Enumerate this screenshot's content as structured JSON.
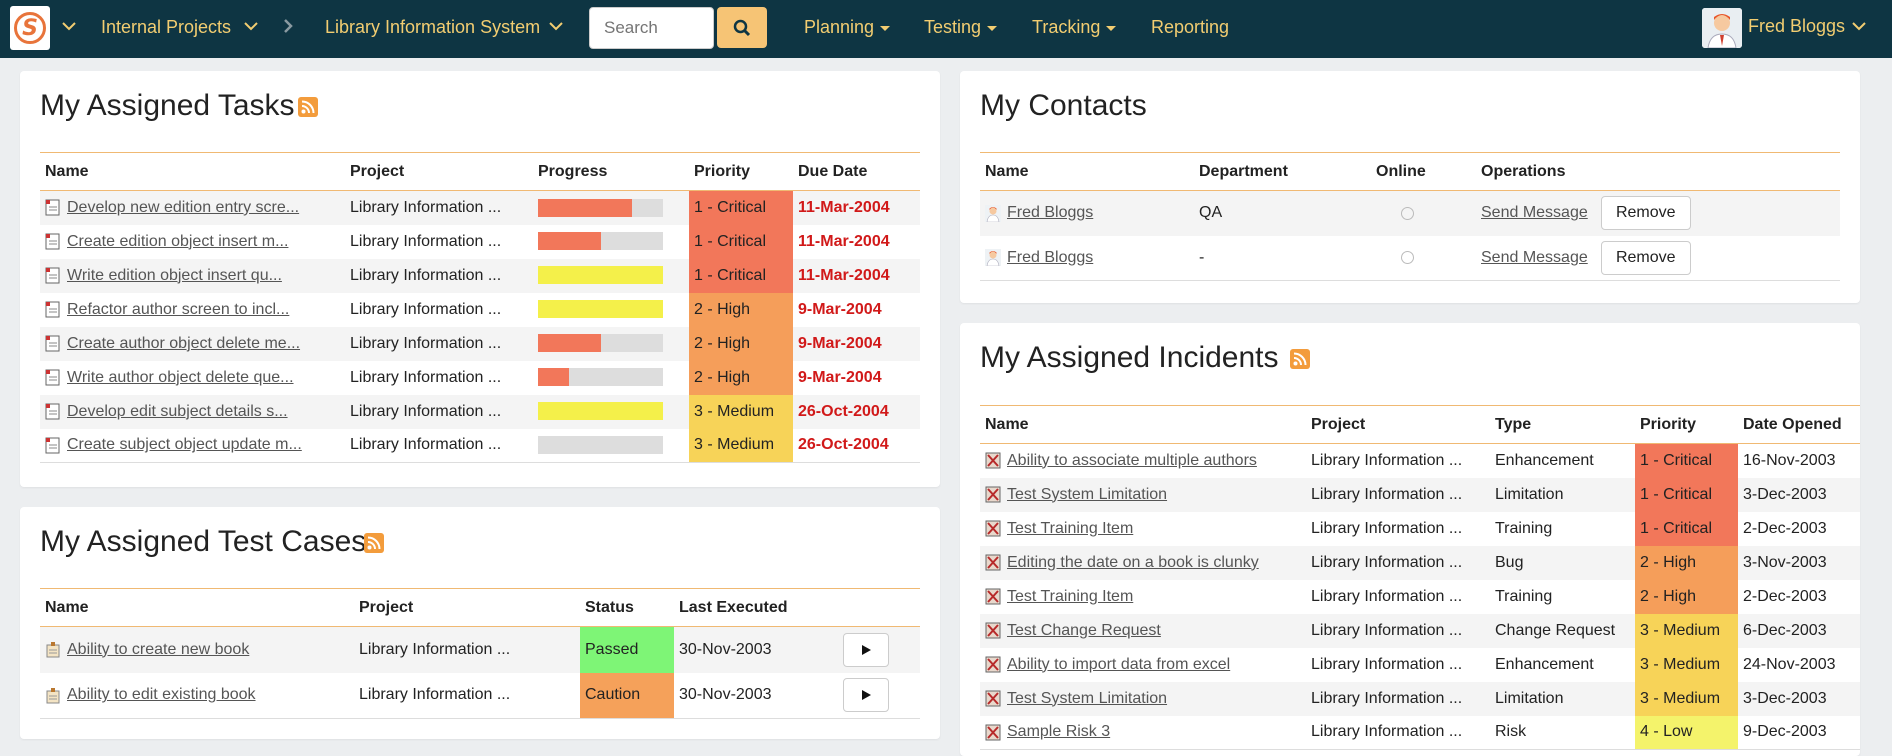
{
  "topbar": {
    "project_group": "Internal Projects",
    "project": "Library Information System",
    "search_placeholder": "Search",
    "menus": [
      "Planning",
      "Testing",
      "Tracking",
      "Reporting"
    ],
    "user_name": "Fred Bloggs"
  },
  "tasks": {
    "title": "My Assigned Tasks",
    "columns": [
      "Name",
      "Project",
      "Progress",
      "Priority",
      "Due Date"
    ],
    "rows": [
      {
        "name": "Develop new edition entry scre...",
        "project": "Library Information ...",
        "progress": 0.75,
        "progress_color": "#f2775a",
        "priority": "1 - Critical",
        "due": "11-Mar-2004"
      },
      {
        "name": "Create edition object insert m...",
        "project": "Library Information ...",
        "progress": 0.5,
        "progress_color": "#f2775a",
        "priority": "1 - Critical",
        "due": "11-Mar-2004"
      },
      {
        "name": "Write edition object insert qu...",
        "project": "Library Information ...",
        "progress": 1.0,
        "progress_color": "#f4f04a",
        "priority": "1 - Critical",
        "due": "11-Mar-2004"
      },
      {
        "name": "Refactor author screen to incl...",
        "project": "Library Information ...",
        "progress": 1.0,
        "progress_color": "#f4f04a",
        "priority": "2 - High",
        "due": "9-Mar-2004"
      },
      {
        "name": "Create author object delete me...",
        "project": "Library Information ...",
        "progress": 0.5,
        "progress_color": "#f2775a",
        "priority": "2 - High",
        "due": "9-Mar-2004"
      },
      {
        "name": "Write author object delete que...",
        "project": "Library Information ...",
        "progress": 0.25,
        "progress_color": "#f2775a",
        "priority": "2 - High",
        "due": "9-Mar-2004"
      },
      {
        "name": "Develop edit subject details s...",
        "project": "Library Information ...",
        "progress": 1.0,
        "progress_color": "#f4f04a",
        "priority": "3 - Medium",
        "due": "26-Oct-2004"
      },
      {
        "name": "Create subject object update m...",
        "project": "Library Information ...",
        "progress": 0.0,
        "progress_color": "#f2775a",
        "priority": "3 - Medium",
        "due": "26-Oct-2004"
      }
    ]
  },
  "testcases": {
    "title": "My Assigned Test Cases",
    "columns": [
      "Name",
      "Project",
      "Status",
      "Last Executed"
    ],
    "rows": [
      {
        "name": "Ability to create new book",
        "project": "Library Information ...",
        "status": "Passed",
        "last": "30-Nov-2003"
      },
      {
        "name": "Ability to edit existing book",
        "project": "Library Information ...",
        "status": "Caution",
        "last": "30-Nov-2003"
      }
    ]
  },
  "contacts": {
    "title": "My Contacts",
    "columns": [
      "Name",
      "Department",
      "Online",
      "Operations"
    ],
    "send_label": "Send Message",
    "remove_label": "Remove",
    "rows": [
      {
        "name": "Fred Bloggs",
        "department": "QA"
      },
      {
        "name": "Fred Bloggs",
        "department": "-"
      }
    ]
  },
  "incidents": {
    "title": "My Assigned Incidents",
    "columns": [
      "Name",
      "Project",
      "Type",
      "Priority",
      "Date Opened"
    ],
    "rows": [
      {
        "name": "Ability to associate multiple authors",
        "project": "Library Information ...",
        "type": "Enhancement",
        "priority": "1 - Critical",
        "date": "16-Nov-2003"
      },
      {
        "name": "Test System Limitation",
        "project": "Library Information ...",
        "type": "Limitation",
        "priority": "1 - Critical",
        "date": "3-Dec-2003"
      },
      {
        "name": "Test Training Item",
        "project": "Library Information ...",
        "type": "Training",
        "priority": "1 - Critical",
        "date": "2-Dec-2003"
      },
      {
        "name": "Editing the date on a book is clunky",
        "project": "Library Information ...",
        "type": "Bug",
        "priority": "2 - High",
        "date": "3-Nov-2003"
      },
      {
        "name": "Test Training Item",
        "project": "Library Information ...",
        "type": "Training",
        "priority": "2 - High",
        "date": "2-Dec-2003"
      },
      {
        "name": "Test Change Request",
        "project": "Library Information ...",
        "type": "Change Request",
        "priority": "3 - Medium",
        "date": "6-Dec-2003"
      },
      {
        "name": "Ability to import data from excel",
        "project": "Library Information ...",
        "type": "Enhancement",
        "priority": "3 - Medium",
        "date": "24-Nov-2003"
      },
      {
        "name": "Test System Limitation",
        "project": "Library Information ...",
        "type": "Limitation",
        "priority": "3 - Medium",
        "date": "3-Dec-2003"
      },
      {
        "name": "Sample Risk 3",
        "project": "Library Information ...",
        "type": "Risk",
        "priority": "4 - Low",
        "date": "9-Dec-2003"
      }
    ]
  }
}
